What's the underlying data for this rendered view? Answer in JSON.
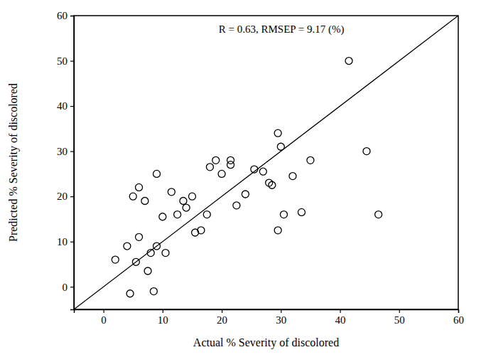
{
  "chart_data": {
    "type": "scatter",
    "xlabel": "Actual % Severity of discolored",
    "ylabel": "Predicted % Severity of discolored",
    "annotations": [
      "R = 0.63, RMSEP = 9.17 (%)"
    ],
    "x": [
      41.5,
      44.5,
      46.5,
      35,
      33.5,
      32,
      30.5,
      29.5,
      30,
      29.5,
      28.5,
      28,
      27,
      25.5,
      24,
      22.5,
      21.5,
      21.5,
      20,
      19,
      18,
      17.5,
      16.5,
      15.5,
      15,
      14,
      13.5,
      12.5,
      11.5,
      10,
      10.5,
      9,
      9,
      8.5,
      8,
      7.5,
      7,
      6,
      6,
      5,
      5.5,
      4,
      4.5,
      2
    ],
    "values": [
      50,
      30,
      16,
      28,
      16.5,
      24.5,
      16,
      34,
      31,
      12.5,
      22.5,
      23,
      25.5,
      26,
      20.5,
      18,
      27,
      28,
      25,
      28,
      26.5,
      16,
      12.5,
      12,
      20,
      17.5,
      19,
      16,
      21,
      15.5,
      7.5,
      25,
      9,
      -1,
      7.5,
      3.5,
      19,
      11,
      22,
      20,
      5.5,
      9,
      -1.5,
      6
    ],
    "marker": "circle",
    "color": "#000000",
    "xlim": [
      -5,
      60
    ],
    "ylim": [
      -5,
      60
    ],
    "xticks": [
      0,
      10,
      20,
      30,
      40,
      50,
      60
    ],
    "yticks": [
      0,
      10,
      20,
      30,
      40,
      50,
      60
    ],
    "grid": false
  }
}
